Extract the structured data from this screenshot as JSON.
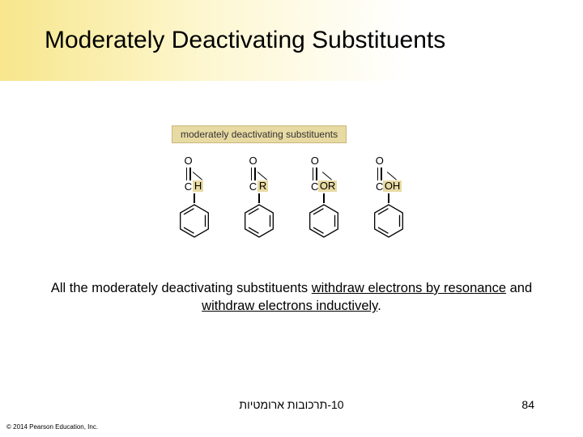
{
  "slide": {
    "title": "Moderately Deactivating Substituents",
    "figure_label": "moderately deactivating substituents",
    "substituents": [
      "H",
      "R",
      "OR",
      "OH"
    ],
    "caption_pre": "All the moderately deactivating substituents ",
    "caption_u1": "withdraw electrons by resonance",
    "caption_mid": " and ",
    "caption_u2": "withdraw electrons inductively",
    "caption_post": ".",
    "footer_text": "10-תרכובות ארומטיות",
    "slide_number": "84",
    "copyright": "© 2014 Pearson Education, Inc."
  },
  "style": {
    "highlight_bg": "#e8daa3",
    "highlight_border": "#c9b77a",
    "gradient_start": "#f7e68c",
    "gradient_mid": "#fdf7d0",
    "title_fontsize": 30,
    "caption_fontsize": 16.5,
    "atom_fontsize": 13,
    "figlabel_fontsize": 12,
    "footer_fontsize": 14,
    "copyright_fontsize": 8,
    "benzene_size": 44
  }
}
